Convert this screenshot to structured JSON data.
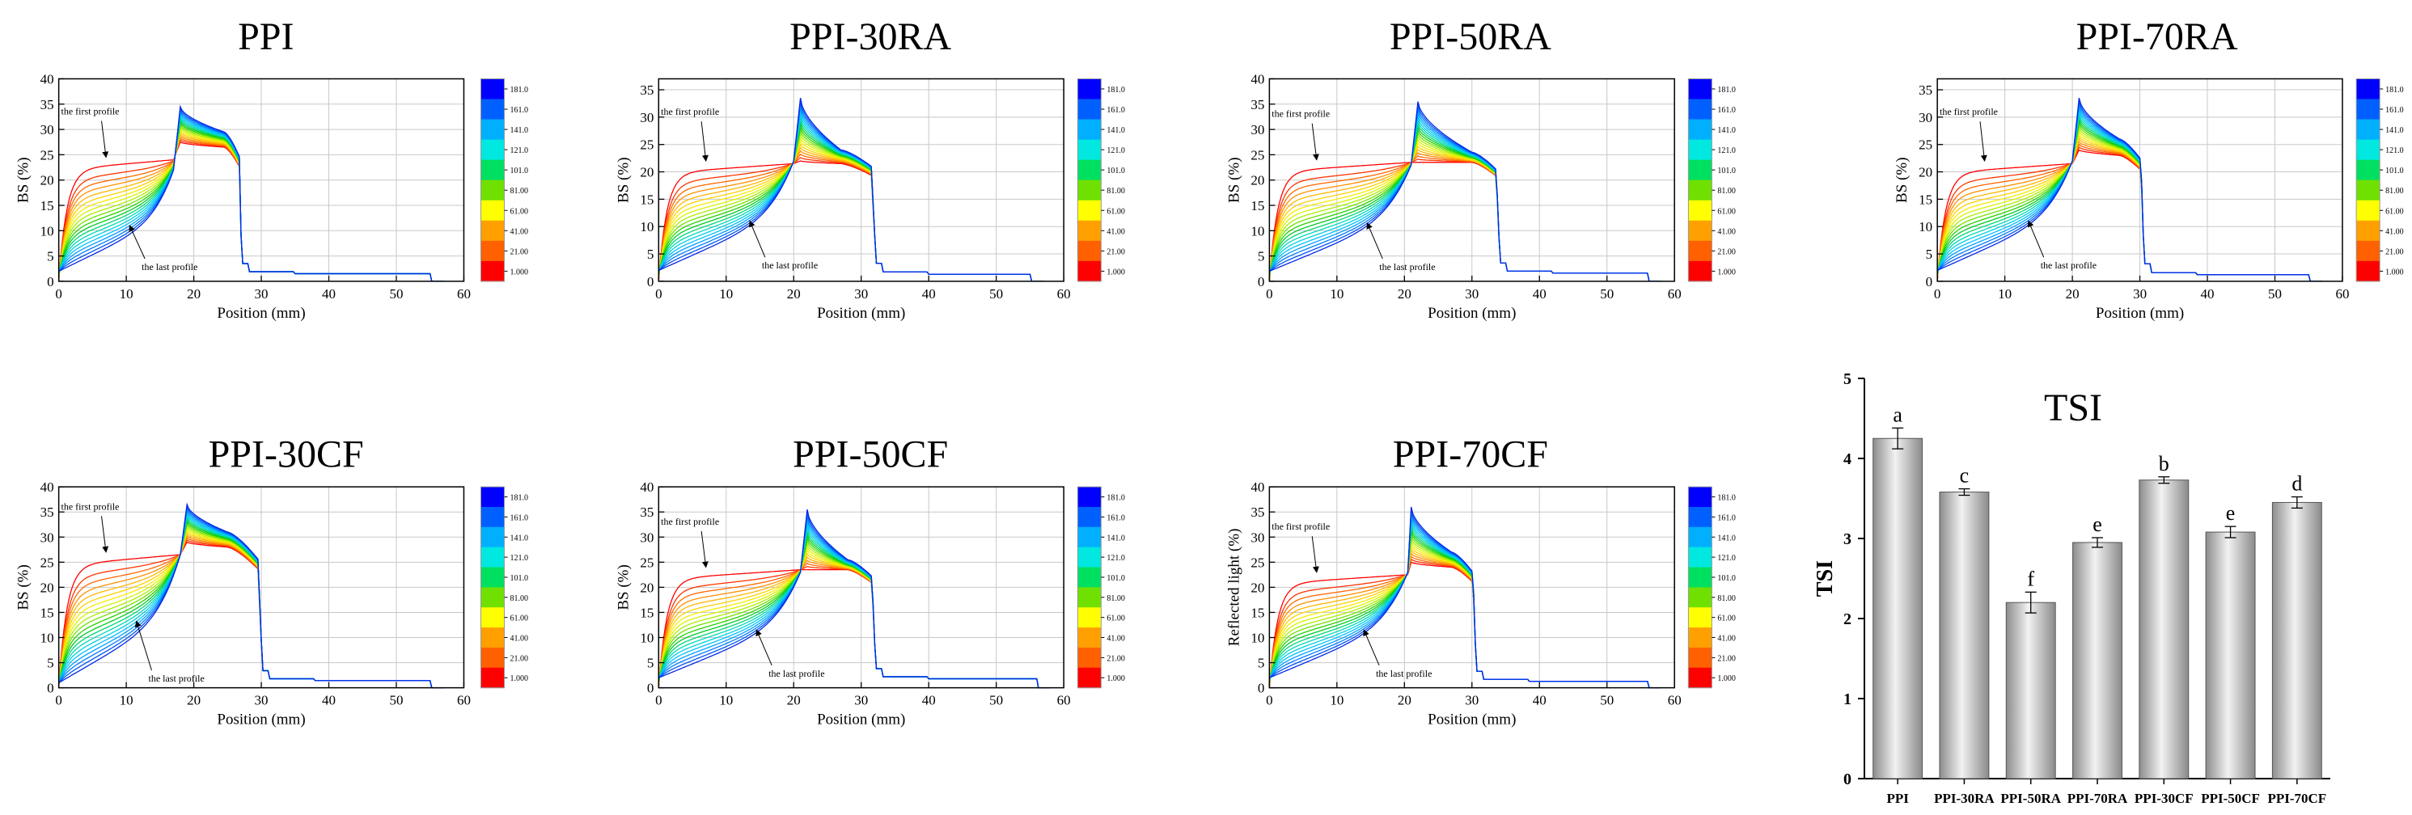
{
  "chart_data": [
    {
      "type": "line",
      "title": "PPI",
      "xlabel": "Position (mm)",
      "ylabel": "BS (%)",
      "xlim": [
        0,
        60
      ],
      "ylim": [
        0,
        40
      ],
      "xticks": [
        0,
        10,
        20,
        30,
        40,
        50,
        60
      ],
      "yticks": [
        0,
        5,
        10,
        15,
        20,
        25,
        30,
        35,
        40
      ],
      "grid": true,
      "series_count": 20,
      "annotations": [
        "the first profile",
        "the last profile"
      ],
      "first_profile": {
        "plateau": 24,
        "x_step": 17
      },
      "last_profile": {
        "start": 2,
        "rise_to": 22,
        "x_step": 17
      },
      "shared": {
        "peak": 34.5,
        "peak_x": 18,
        "shoulder": 29.5,
        "shoulder_x": 24.5,
        "step_x": 27,
        "tail": 1.5,
        "end_x": 55
      },
      "colorbar": {
        "ticks": [
          "181.0",
          "161.0",
          "141.0",
          "121.0",
          "101.0",
          "81.00",
          "61.00",
          "41.00",
          "21.00",
          "1.000"
        ]
      }
    },
    {
      "type": "line",
      "title": "PPI-30RA",
      "xlabel": "Position (mm)",
      "ylabel": "BS (%)",
      "xlim": [
        0,
        60
      ],
      "ylim": [
        0,
        37
      ],
      "xticks": [
        0,
        10,
        20,
        30,
        40,
        50,
        60
      ],
      "yticks": [
        0,
        5,
        10,
        15,
        20,
        25,
        30,
        35
      ],
      "grid": true,
      "series_count": 20,
      "annotations": [
        "the first profile",
        "the last profile"
      ],
      "first_profile": {
        "plateau": 21.5,
        "x_step": 20
      },
      "last_profile": {
        "start": 2,
        "rise_to": 22,
        "x_step": 20
      },
      "shared": {
        "peak": 33.5,
        "peak_x": 21,
        "shoulder": 24,
        "shoulder_x": 27,
        "step_x": 32,
        "tail": 1.3,
        "end_x": 55
      },
      "colorbar": {
        "ticks": [
          "181.0",
          "161.0",
          "141.0",
          "121.0",
          "101.0",
          "81.00",
          "61.00",
          "41.00",
          "21.00",
          "1.000"
        ]
      }
    },
    {
      "type": "line",
      "title": "PPI-50RA",
      "xlabel": "Position (mm)",
      "ylabel": "BS (%)",
      "xlim": [
        0,
        60
      ],
      "ylim": [
        0,
        40
      ],
      "xticks": [
        0,
        10,
        20,
        30,
        40,
        50,
        60
      ],
      "yticks": [
        0,
        5,
        10,
        15,
        20,
        25,
        30,
        35,
        40
      ],
      "grid": true,
      "series_count": 20,
      "annotations": [
        "the first profile",
        "the last profile"
      ],
      "first_profile": {
        "plateau": 23.5,
        "x_step": 21
      },
      "last_profile": {
        "start": 2,
        "rise_to": 23,
        "x_step": 21
      },
      "shared": {
        "peak": 35.5,
        "peak_x": 22,
        "shoulder": 25.5,
        "shoulder_x": 30,
        "step_x": 34,
        "tail": 1.6,
        "end_x": 56
      },
      "colorbar": {
        "ticks": [
          "181.0",
          "161.0",
          "141.0",
          "121.0",
          "101.0",
          "81.00",
          "61.00",
          "41.00",
          "21.00",
          "1.000"
        ]
      }
    },
    {
      "type": "line",
      "title": "PPI-70RA",
      "xlabel": "Position (mm)",
      "ylabel": "BS (%)",
      "xlim": [
        0,
        60
      ],
      "ylim": [
        0,
        37
      ],
      "xticks": [
        0,
        10,
        20,
        30,
        40,
        50,
        60
      ],
      "yticks": [
        0,
        5,
        10,
        15,
        20,
        25,
        30,
        35
      ],
      "grid": true,
      "series_count": 20,
      "annotations": [
        "the first profile",
        "the last profile"
      ],
      "first_profile": {
        "plateau": 21.5,
        "x_step": 20
      },
      "last_profile": {
        "start": 2,
        "rise_to": 22,
        "x_step": 20
      },
      "shared": {
        "peak": 33.5,
        "peak_x": 21,
        "shoulder": 26,
        "shoulder_x": 27,
        "step_x": 30.5,
        "tail": 1.2,
        "end_x": 55
      },
      "colorbar": {
        "ticks": [
          "181.0",
          "161.0",
          "141.0",
          "121.0",
          "101.0",
          "81.00",
          "61.00",
          "41.00",
          "21.00",
          "1.000"
        ]
      }
    },
    {
      "type": "line",
      "title": "PPI-30CF",
      "xlabel": "Position (mm)",
      "ylabel": "BS (%)",
      "xlim": [
        0,
        60
      ],
      "ylim": [
        0,
        40
      ],
      "xticks": [
        0,
        10,
        20,
        30,
        40,
        50,
        60
      ],
      "yticks": [
        0,
        5,
        10,
        15,
        20,
        25,
        30,
        35,
        40
      ],
      "grid": true,
      "series_count": 20,
      "annotations": [
        "the first profile",
        "the last profile"
      ],
      "first_profile": {
        "plateau": 26.5,
        "x_step": 18
      },
      "last_profile": {
        "start": 1,
        "rise_to": 26.5,
        "x_step": 18
      },
      "shared": {
        "peak": 36.5,
        "peak_x": 19,
        "shoulder": 31,
        "shoulder_x": 25,
        "step_x": 30,
        "tail": 1.4,
        "end_x": 55
      },
      "colorbar": {
        "ticks": [
          "181.0",
          "161.0",
          "141.0",
          "121.0",
          "101.0",
          "81.00",
          "61.00",
          "41.00",
          "21.00",
          "1.000"
        ]
      }
    },
    {
      "type": "line",
      "title": "PPI-50CF",
      "xlabel": "Position (mm)",
      "ylabel": "BS (%)",
      "xlim": [
        0,
        60
      ],
      "ylim": [
        0,
        40
      ],
      "xticks": [
        0,
        10,
        20,
        30,
        40,
        50,
        60
      ],
      "yticks": [
        0,
        5,
        10,
        15,
        20,
        25,
        30,
        35,
        40
      ],
      "grid": true,
      "series_count": 20,
      "annotations": [
        "the first profile",
        "the last profile"
      ],
      "first_profile": {
        "plateau": 23.5,
        "x_step": 21
      },
      "last_profile": {
        "start": 2,
        "rise_to": 23,
        "x_step": 21
      },
      "shared": {
        "peak": 35.5,
        "peak_x": 22,
        "shoulder": 25.5,
        "shoulder_x": 28,
        "step_x": 32,
        "tail": 1.8,
        "end_x": 56
      },
      "colorbar": {
        "ticks": [
          "181.0",
          "161.0",
          "141.0",
          "121.0",
          "101.0",
          "81.00",
          "61.00",
          "41.00",
          "21.00",
          "1.000"
        ]
      }
    },
    {
      "type": "line",
      "title": "PPI-70CF",
      "xlabel": "Position (mm)",
      "ylabel": "Reflected light (%)",
      "xlim": [
        0,
        60
      ],
      "ylim": [
        0,
        40
      ],
      "xticks": [
        0,
        10,
        20,
        30,
        40,
        50,
        60
      ],
      "yticks": [
        0,
        5,
        10,
        15,
        20,
        25,
        30,
        35,
        40
      ],
      "grid": true,
      "series_count": 20,
      "annotations": [
        "the first profile",
        "the last profile"
      ],
      "first_profile": {
        "plateau": 22.5,
        "x_step": 20.5
      },
      "last_profile": {
        "start": 2,
        "rise_to": 23,
        "x_step": 20.5
      },
      "shared": {
        "peak": 36,
        "peak_x": 21,
        "shoulder": 27,
        "shoulder_x": 27,
        "step_x": 30.5,
        "tail": 1.3,
        "end_x": 56
      },
      "colorbar": {
        "ticks": [
          "181.0",
          "161.0",
          "141.0",
          "121.0",
          "101.0",
          "81.00",
          "61.00",
          "41.00",
          "21.00",
          "1.000"
        ]
      }
    },
    {
      "type": "bar",
      "title": "TSI",
      "xlabel": "",
      "ylabel": "TSI",
      "ylim": [
        0,
        5
      ],
      "yticks": [
        0,
        1,
        2,
        3,
        4,
        5
      ],
      "categories": [
        "PPI",
        "PPI-30RA",
        "PPI-50RA",
        "PPI-70RA",
        "PPI-30CF",
        "PPI-50CF",
        "PPI-70CF"
      ],
      "values": [
        4.25,
        3.58,
        2.2,
        2.95,
        3.73,
        3.08,
        3.45
      ],
      "errors": [
        0.13,
        0.04,
        0.13,
        0.06,
        0.04,
        0.07,
        0.07
      ],
      "letters": [
        "a",
        "c",
        "f",
        "e",
        "b",
        "e",
        "d"
      ]
    }
  ]
}
